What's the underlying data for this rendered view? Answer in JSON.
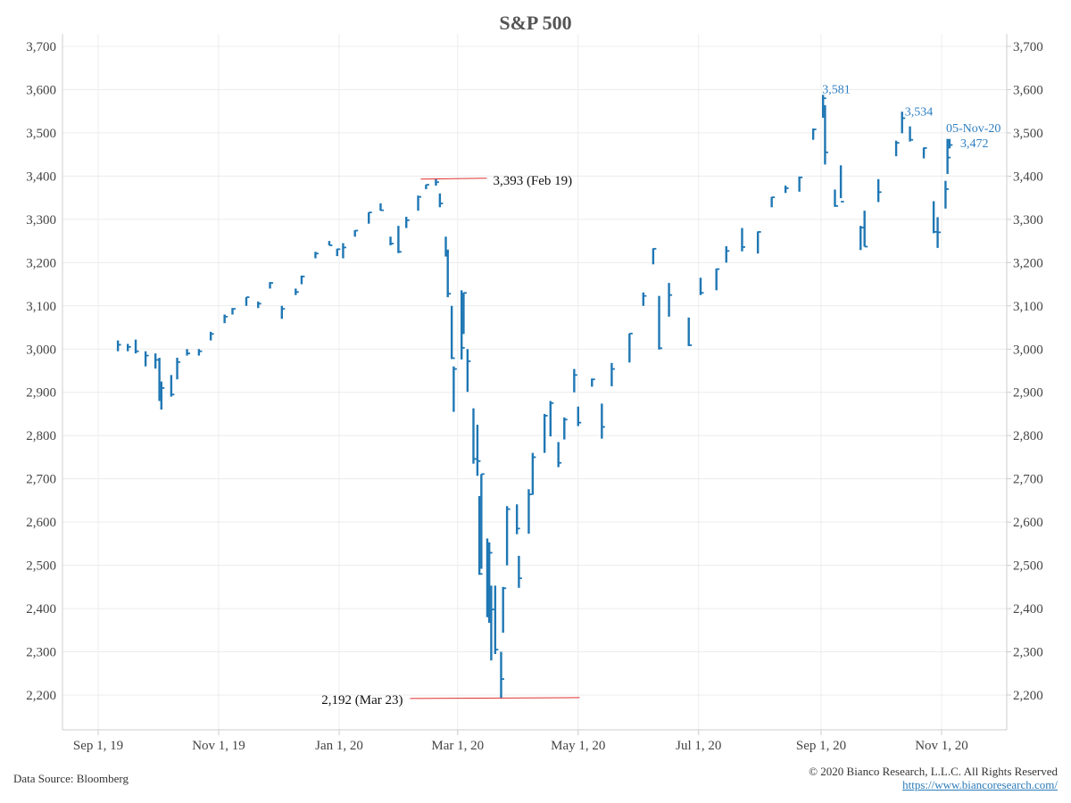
{
  "chart_data": {
    "type": "ohlc",
    "title": "S&P 500",
    "xlabel": "",
    "ylabel": "",
    "ylim": [
      2200,
      3700
    ],
    "yticks": [
      2200,
      2300,
      2400,
      2500,
      2600,
      2700,
      2800,
      2900,
      3000,
      3100,
      3200,
      3300,
      3400,
      3500,
      3600,
      3700
    ],
    "ytick_labels": [
      "2,200",
      "2,300",
      "2,400",
      "2,500",
      "2,600",
      "2,700",
      "2,800",
      "2,900",
      "3,000",
      "3,100",
      "3,200",
      "3,300",
      "3,400",
      "3,500",
      "3,600",
      "3,700"
    ],
    "xticks": [
      "2019-09-01",
      "2019-11-01",
      "2020-01-01",
      "2020-03-01",
      "2020-05-01",
      "2020-07-01",
      "2020-09-01",
      "2020-11-01"
    ],
    "xtick_labels": [
      "Sep 1, 19",
      "Nov 1, 19",
      "Jan 1, 20",
      "Mar 1, 20",
      "May 1, 20",
      "Jul 1, 20",
      "Sep 1, 20",
      "Nov 1, 20"
    ],
    "grid": true,
    "series_color": "#1f77b4",
    "columns": [
      "date",
      "high",
      "low",
      "close"
    ],
    "bars": [
      [
        "2019-09-11",
        3020,
        2995,
        3010
      ],
      [
        "2019-09-16",
        3012,
        2995,
        3005
      ],
      [
        "2019-09-20",
        3022,
        2990,
        2995
      ],
      [
        "2019-09-25",
        2995,
        2960,
        2985
      ],
      [
        "2019-09-30",
        2990,
        2955,
        2975
      ],
      [
        "2019-10-02",
        2980,
        2880,
        2890
      ],
      [
        "2019-10-03",
        2925,
        2860,
        2910
      ],
      [
        "2019-10-08",
        2940,
        2890,
        2895
      ],
      [
        "2019-10-11",
        2980,
        2930,
        2970
      ],
      [
        "2019-10-16",
        3000,
        2985,
        2990
      ],
      [
        "2019-10-22",
        3000,
        2985,
        2995
      ],
      [
        "2019-10-28",
        3040,
        3020,
        3035
      ],
      [
        "2019-11-04",
        3080,
        3060,
        3075
      ],
      [
        "2019-11-08",
        3095,
        3080,
        3093
      ],
      [
        "2019-11-15",
        3120,
        3100,
        3120
      ],
      [
        "2019-11-21",
        3110,
        3095,
        3105
      ],
      [
        "2019-11-27",
        3155,
        3140,
        3153
      ],
      [
        "2019-12-03",
        3100,
        3070,
        3093
      ],
      [
        "2019-12-10",
        3140,
        3125,
        3132
      ],
      [
        "2019-12-13",
        3170,
        3150,
        3168
      ],
      [
        "2019-12-20",
        3225,
        3210,
        3221
      ],
      [
        "2019-12-27",
        3250,
        3240,
        3240
      ],
      [
        "2019-12-31",
        3232,
        3215,
        3231
      ],
      [
        "2020-01-03",
        3245,
        3210,
        3235
      ],
      [
        "2020-01-09",
        3275,
        3260,
        3274
      ],
      [
        "2020-01-16",
        3316,
        3290,
        3316
      ],
      [
        "2020-01-22",
        3337,
        3320,
        3321
      ],
      [
        "2020-01-27",
        3260,
        3240,
        3244
      ],
      [
        "2020-01-31",
        3285,
        3222,
        3225
      ],
      [
        "2020-02-04",
        3306,
        3280,
        3298
      ],
      [
        "2020-02-10",
        3355,
        3320,
        3352
      ],
      [
        "2020-02-14",
        3380,
        3370,
        3380
      ],
      [
        "2020-02-19",
        3393,
        3378,
        3386
      ],
      [
        "2020-02-21",
        3360,
        3328,
        3337
      ],
      [
        "2020-02-24",
        3260,
        3214,
        3225
      ],
      [
        "2020-02-25",
        3230,
        3120,
        3128
      ],
      [
        "2020-02-27",
        3100,
        2977,
        2979
      ],
      [
        "2020-02-28",
        2960,
        2855,
        2954
      ],
      [
        "2020-03-03",
        3136,
        2976,
        3003
      ],
      [
        "2020-03-04",
        3130,
        3035,
        3130
      ],
      [
        "2020-03-06",
        3000,
        2901,
        2972
      ],
      [
        "2020-03-09",
        2863,
        2735,
        2746
      ],
      [
        "2020-03-11",
        2825,
        2707,
        2741
      ],
      [
        "2020-03-12",
        2660,
        2478,
        2480
      ],
      [
        "2020-03-13",
        2711,
        2492,
        2711
      ],
      [
        "2020-03-16",
        2562,
        2380,
        2386
      ],
      [
        "2020-03-17",
        2553,
        2367,
        2529
      ],
      [
        "2020-03-18",
        2453,
        2280,
        2398
      ],
      [
        "2020-03-20",
        2453,
        2295,
        2305
      ],
      [
        "2020-03-23",
        2300,
        2192,
        2237
      ],
      [
        "2020-03-24",
        2450,
        2344,
        2447
      ],
      [
        "2020-03-26",
        2637,
        2500,
        2630
      ],
      [
        "2020-03-31",
        2641,
        2572,
        2585
      ],
      [
        "2020-04-01",
        2522,
        2448,
        2470
      ],
      [
        "2020-04-06",
        2676,
        2573,
        2664
      ],
      [
        "2020-04-08",
        2760,
        2663,
        2750
      ],
      [
        "2020-04-14",
        2850,
        2760,
        2846
      ],
      [
        "2020-04-17",
        2880,
        2798,
        2875
      ],
      [
        "2020-04-21",
        2785,
        2727,
        2737
      ],
      [
        "2020-04-24",
        2842,
        2791,
        2837
      ],
      [
        "2020-04-29",
        2954,
        2900,
        2940
      ],
      [
        "2020-05-01",
        2867,
        2822,
        2830
      ],
      [
        "2020-05-08",
        2932,
        2913,
        2930
      ],
      [
        "2020-05-13",
        2874,
        2793,
        2820
      ],
      [
        "2020-05-18",
        2968,
        2914,
        2954
      ],
      [
        "2020-05-27",
        3036,
        2969,
        3036
      ],
      [
        "2020-06-03",
        3131,
        3100,
        3123
      ],
      [
        "2020-06-08",
        3233,
        3196,
        3232
      ],
      [
        "2020-06-11",
        3123,
        2999,
        3002
      ],
      [
        "2020-06-16",
        3153,
        3075,
        3125
      ],
      [
        "2020-06-26",
        3073,
        3007,
        3009
      ],
      [
        "2020-07-02",
        3165,
        3125,
        3130
      ],
      [
        "2020-07-10",
        3186,
        3136,
        3185
      ],
      [
        "2020-07-15",
        3238,
        3200,
        3227
      ],
      [
        "2020-07-23",
        3280,
        3226,
        3236
      ],
      [
        "2020-07-31",
        3272,
        3221,
        3271
      ],
      [
        "2020-08-07",
        3352,
        3328,
        3351
      ],
      [
        "2020-08-14",
        3378,
        3361,
        3372
      ],
      [
        "2020-08-21",
        3399,
        3364,
        3397
      ],
      [
        "2020-08-28",
        3510,
        3484,
        3508
      ],
      [
        "2020-09-02",
        3588,
        3535,
        3580
      ],
      [
        "2020-09-03",
        3564,
        3427,
        3455
      ],
      [
        "2020-09-08",
        3369,
        3329,
        3331
      ],
      [
        "2020-09-11",
        3425,
        3349,
        3341
      ],
      [
        "2020-09-21",
        3285,
        3229,
        3281
      ],
      [
        "2020-09-23",
        3320,
        3237,
        3237
      ],
      [
        "2020-09-30",
        3393,
        3340,
        3363
      ],
      [
        "2020-10-09",
        3482,
        3446,
        3477
      ],
      [
        "2020-10-12",
        3549,
        3499,
        3534
      ],
      [
        "2020-10-16",
        3515,
        3480,
        3484
      ],
      [
        "2020-10-23",
        3466,
        3441,
        3465
      ],
      [
        "2020-10-28",
        3342,
        3268,
        3271
      ],
      [
        "2020-10-30",
        3305,
        3234,
        3270
      ],
      [
        "2020-11-03",
        3389,
        3325,
        3370
      ],
      [
        "2020-11-04",
        3486,
        3405,
        3443
      ],
      [
        "2020-11-05",
        3486,
        3464,
        3472
      ]
    ],
    "annotations": [
      {
        "text": "3,393 (Feb 19)",
        "date": "2020-02-19",
        "value": 3393,
        "kind": "reference-line",
        "color": "#e03030"
      },
      {
        "text": "2,192 (Mar 23)",
        "date": "2020-03-23",
        "value": 2192,
        "kind": "reference-line",
        "color": "#e03030"
      },
      {
        "text": "3,581",
        "date": "2020-09-02",
        "value": 3581,
        "kind": "label"
      },
      {
        "text": "3,534",
        "date": "2020-10-12",
        "value": 3534,
        "kind": "label"
      },
      {
        "text": "05-Nov-20",
        "date": "2020-11-05",
        "value": 3520,
        "kind": "label"
      },
      {
        "text": "3,472",
        "date": "2020-11-05",
        "value": 3472,
        "kind": "label"
      }
    ]
  },
  "footer": {
    "source": "Data Source: Bloomberg",
    "copyright": "© 2020 Bianco Research, L.L.C. All Rights Reserved",
    "url": "https://www.biancoresearch.com/"
  }
}
